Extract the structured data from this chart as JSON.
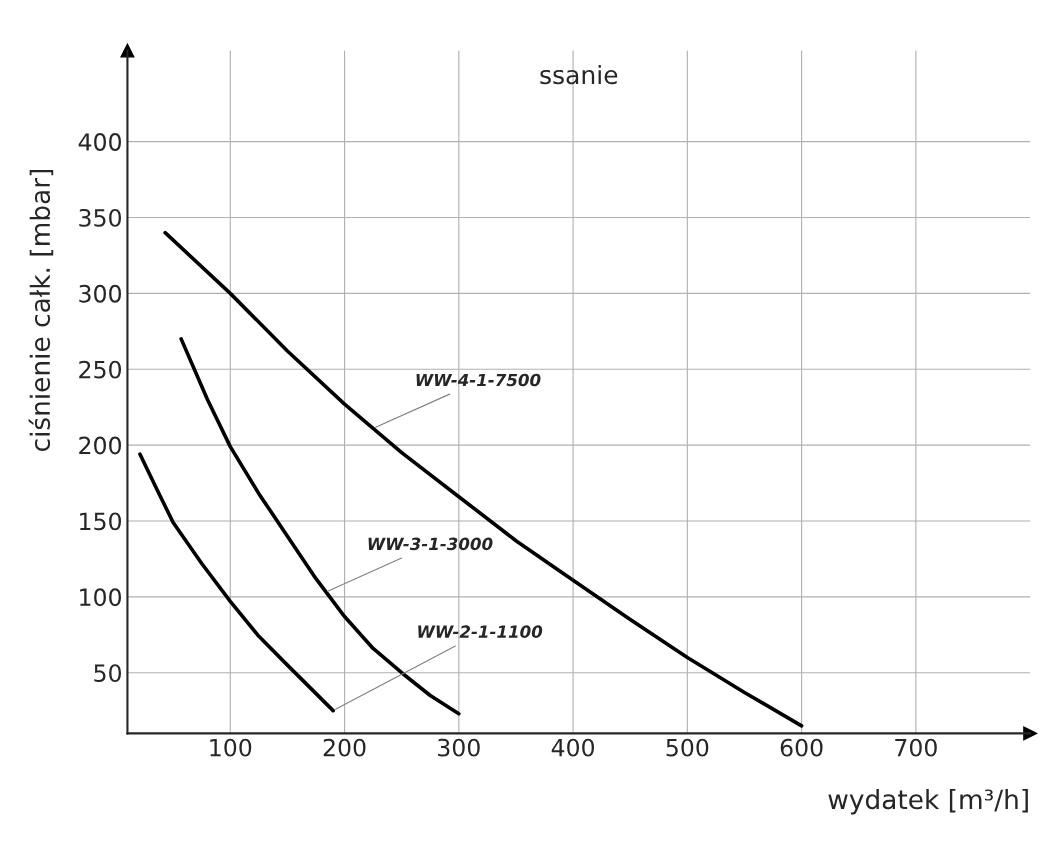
{
  "chart_data": {
    "type": "line",
    "title": "ssanie",
    "xlabel": "wydatek [m³/h]",
    "ylabel": "ciśnienie całk. [mbar]",
    "xlim": [
      10,
      800
    ],
    "ylim": [
      10,
      460
    ],
    "xticks": [
      100,
      200,
      300,
      400,
      500,
      600,
      700
    ],
    "yticks": [
      50,
      100,
      150,
      200,
      250,
      300,
      350,
      400
    ],
    "grid": true,
    "marker": "none",
    "line_style": "solid",
    "series": [
      {
        "color": "#000000",
        "x": [
          43,
          100,
          150,
          200,
          250,
          300,
          350,
          400,
          450,
          500,
          550,
          600
        ],
        "values": [
          340,
          300,
          262,
          227,
          195,
          166,
          137,
          111,
          85,
          60,
          37,
          15
        ]
      },
      {
        "color": "#000000",
        "x": [
          57,
          80,
          100,
          125,
          150,
          175,
          200,
          225,
          250,
          275,
          300
        ],
        "values": [
          270,
          230,
          199,
          168,
          140,
          112,
          87,
          66,
          50,
          35,
          23
        ]
      },
      {
        "color": "#000000",
        "x": [
          21,
          35,
          50,
          75,
          100,
          125,
          150,
          170,
          190
        ],
        "values": [
          194,
          172,
          149,
          122,
          97,
          74,
          55,
          40,
          25
        ]
      }
    ],
    "annotations": [
      {
        "text": "WW-4-1-7500",
        "x": 225,
        "y": 211
      },
      {
        "text": "WW-3-1-3000",
        "x": 183,
        "y": 103
      },
      {
        "text": "WW-2-1-1100",
        "x": 190,
        "y": 25
      }
    ]
  }
}
